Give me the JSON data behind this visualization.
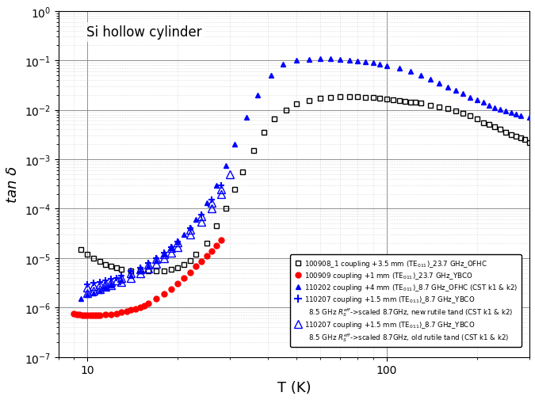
{
  "title": "Si hollow cylinder",
  "xlabel": "T (K)",
  "ylabel": "tan δ",
  "xlim": [
    8,
    300
  ],
  "ylim": [
    1e-07,
    1.0
  ],
  "legend_entries": [
    "100908_1 coupling +3.5 mm (TE$_{011}$)_23.7 GHz_OFHC",
    "100909 coupling +1 mm (TE$_{011}$)_23.7 GHz_YBCO",
    "110202 coupling +4 mm (TE$_{011}$)_8.7 GHz_OFHC (CST k1 & k2)",
    "110207 coupling +1.5 mm (TE$_{011}$)_8.7 GHz_YBCO",
    "8.5 GHz $R_S^{eff}$->scaled 8.7GHz, new rutile tand (CST k1 & k2)",
    "110207 coupling +1.5 mm (TE$_{011}$)_8.7 GHz_YBCO",
    "8.5 GHz $R_S^{eff}$->scaled 8.7GHz, old rutile tand (CST k1 & k2)"
  ],
  "series": {
    "black_squares": {
      "color": "black",
      "marker": "s",
      "fillstyle": "none",
      "markersize": 4,
      "T": [
        9.5,
        10.0,
        10.5,
        11.0,
        11.5,
        12.0,
        12.5,
        13.0,
        14.0,
        15.0,
        16.0,
        17.0,
        18.0,
        19.0,
        20.0,
        21.0,
        22.0,
        23.0,
        25.0,
        27.0,
        29.0,
        31.0,
        33.0,
        36.0,
        39.0,
        42.0,
        46.0,
        50.0,
        55.0,
        60.0,
        65.0,
        70.0,
        75.0,
        80.0,
        85.0,
        90.0,
        95.0,
        100.0,
        105.0,
        110.0,
        115.0,
        120.0,
        125.0,
        130.0,
        140.0,
        150.0,
        160.0,
        170.0,
        180.0,
        190.0,
        200.0,
        210.0,
        220.0,
        230.0,
        240.0,
        250.0,
        260.0,
        270.0,
        280.0,
        290.0,
        300.0
      ],
      "tand": [
        1.5e-05,
        1.2e-05,
        1e-05,
        8.5e-06,
        7.5e-06,
        7e-06,
        6.5e-06,
        6e-06,
        5.5e-06,
        5.5e-06,
        5.5e-06,
        5.5e-06,
        5.5e-06,
        6e-06,
        6.5e-06,
        7.5e-06,
        9e-06,
        1.2e-05,
        2e-05,
        4.5e-05,
        0.0001,
        0.00025,
        0.00055,
        0.0015,
        0.0035,
        0.0065,
        0.01,
        0.013,
        0.0155,
        0.017,
        0.018,
        0.0185,
        0.0185,
        0.0185,
        0.018,
        0.0175,
        0.017,
        0.0165,
        0.016,
        0.0155,
        0.015,
        0.0145,
        0.014,
        0.0135,
        0.0125,
        0.0115,
        0.0105,
        0.0095,
        0.0085,
        0.0075,
        0.0065,
        0.0055,
        0.005,
        0.0045,
        0.004,
        0.0035,
        0.0032,
        0.0029,
        0.0027,
        0.0025,
        0.0022
      ]
    },
    "red_circles": {
      "color": "red",
      "marker": "o",
      "fillstyle": "full",
      "markersize": 5,
      "T": [
        9.0,
        9.2,
        9.4,
        9.6,
        9.8,
        10.0,
        10.2,
        10.4,
        10.6,
        10.8,
        11.0,
        11.5,
        12.0,
        12.5,
        13.0,
        13.5,
        14.0,
        14.5,
        15.0,
        15.5,
        16.0,
        17.0,
        18.0,
        19.0,
        20.0,
        21.0,
        22.0,
        23.0,
        24.0,
        25.0,
        26.0,
        27.0,
        28.0
      ],
      "tand": [
        7.5e-07,
        7.3e-07,
        7.2e-07,
        7.1e-07,
        7e-07,
        7e-07,
        7e-07,
        7e-07,
        7e-07,
        7e-07,
        7.1e-07,
        7.2e-07,
        7.4e-07,
        7.6e-07,
        8e-07,
        8.5e-07,
        9e-07,
        9.5e-07,
        1e-06,
        1.1e-06,
        1.2e-06,
        1.5e-06,
        1.9e-06,
        2.4e-06,
        3.1e-06,
        4e-06,
        5.2e-06,
        6.8e-06,
        8.5e-06,
        1.1e-05,
        1.4e-05,
        1.8e-05,
        2.3e-05
      ]
    },
    "blue_filled_triangles": {
      "color": "blue",
      "marker": "^",
      "fillstyle": "full",
      "markersize": 5,
      "T": [
        9.5,
        10.0,
        10.5,
        11.0,
        11.5,
        12.0,
        13.0,
        14.0,
        15.0,
        16.0,
        17.0,
        18.0,
        19.0,
        20.0,
        21.0,
        22.0,
        23.0,
        25.0,
        27.0,
        29.0,
        31.0,
        34.0,
        37.0,
        41.0,
        45.0,
        50.0,
        55.0,
        60.0,
        65.0,
        70.0,
        75.0,
        80.0,
        85.0,
        90.0,
        95.0,
        100.0,
        110.0,
        120.0,
        130.0,
        140.0,
        150.0,
        160.0,
        170.0,
        180.0,
        190.0,
        200.0,
        210.0,
        220.0,
        230.0,
        240.0,
        250.0,
        260.0,
        270.0,
        280.0,
        300.0
      ],
      "tand": [
        1.5e-06,
        1.8e-06,
        2e-06,
        2.2e-06,
        2.5e-06,
        2.8e-06,
        3.5e-06,
        4.5e-06,
        5.5e-06,
        7e-06,
        9e-06,
        1.2e-05,
        1.6e-05,
        2.2e-05,
        3e-05,
        4.2e-05,
        6e-05,
        0.00013,
        0.0003,
        0.00075,
        0.002,
        0.007,
        0.02,
        0.05,
        0.085,
        0.1,
        0.105,
        0.107,
        0.107,
        0.105,
        0.102,
        0.098,
        0.094,
        0.089,
        0.084,
        0.079,
        0.069,
        0.059,
        0.05,
        0.042,
        0.035,
        0.029,
        0.0245,
        0.021,
        0.018,
        0.016,
        0.014,
        0.0125,
        0.0112,
        0.0102,
        0.0095,
        0.0088,
        0.0082,
        0.0077,
        0.007
      ]
    },
    "blue_plus": {
      "color": "blue",
      "marker": "P",
      "fillstyle": "full",
      "markersize": 6,
      "T": [
        10.0,
        10.5,
        11.0,
        11.5,
        12.0,
        12.5,
        13.0,
        14.0,
        15.0,
        16.0,
        17.0,
        18.0,
        19.0,
        20.0,
        22.0,
        24.0,
        26.0,
        28.0
      ],
      "tand": [
        3e-06,
        3.2e-06,
        3.3e-06,
        3.5e-06,
        3.8e-06,
        4e-06,
        4.5e-06,
        5.5e-06,
        6.5e-06,
        8e-06,
        1e-05,
        1.3e-05,
        1.7e-05,
        2.2e-05,
        4e-05,
        7.5e-05,
        0.00015,
        0.0003
      ]
    },
    "blue_open_triangles_new": {
      "color": "blue",
      "marker": "^",
      "fillstyle": "none",
      "markersize": 7,
      "T": [
        10.0,
        10.5,
        11.0,
        11.5,
        12.0,
        12.5,
        13.0,
        14.0,
        15.0,
        16.0,
        17.0,
        18.0,
        19.0,
        20.0,
        22.0,
        24.0,
        26.0,
        28.0,
        30.0
      ],
      "tand": [
        2.5e-06,
        2.7e-06,
        2.9e-06,
        3.1e-06,
        3.3e-06,
        3.6e-06,
        4e-06,
        5e-06,
        6e-06,
        7.5e-06,
        9.5e-06,
        1.2e-05,
        1.6e-05,
        2.1e-05,
        3.8e-05,
        7e-05,
        0.00013,
        0.00025,
        0.0005
      ]
    },
    "blue_open_triangles_old": {
      "color": "blue",
      "marker": "^",
      "fillstyle": "none",
      "markersize": 7,
      "T": [
        10.0,
        10.5,
        11.0,
        11.5,
        12.0,
        13.0,
        14.0,
        15.0,
        16.0,
        17.0,
        18.0,
        19.0,
        20.0,
        22.0,
        24.0,
        26.0,
        28.0
      ],
      "tand": [
        2e-06,
        2.2e-06,
        2.4e-06,
        2.6e-06,
        2.8e-06,
        3.3e-06,
        4e-06,
        5e-06,
        6.2e-06,
        7.8e-06,
        1e-05,
        1.3e-05,
        1.7e-05,
        3e-05,
        5.5e-05,
        0.0001,
        0.0002
      ]
    }
  },
  "background_color": "#ffffff",
  "grid_major_color": "#808080",
  "grid_minor_color": "#c0c0c0"
}
